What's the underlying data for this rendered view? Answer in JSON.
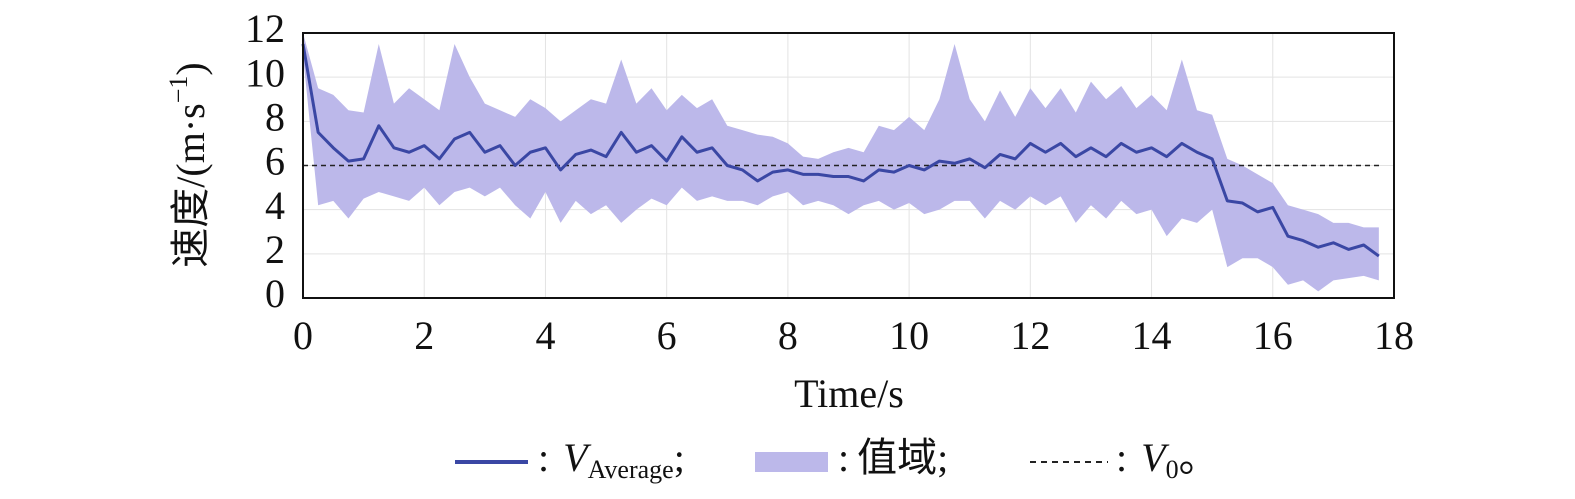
{
  "chart_data": {
    "type": "line",
    "xlabel": "Time/s",
    "ylabel": "速度/(m·s",
    "ylabel_sup": "−1",
    "ylabel_suffix": ")",
    "xlim": [
      0,
      18
    ],
    "xticks": [
      0,
      2,
      4,
      6,
      8,
      10,
      12,
      14,
      16,
      18
    ],
    "ylim": [
      0,
      12
    ],
    "yticks": [
      0,
      2,
      4,
      6,
      8,
      10,
      12
    ],
    "grid": true,
    "x": [
      0,
      0.25,
      0.5,
      0.75,
      1,
      1.25,
      1.5,
      1.75,
      2,
      2.25,
      2.5,
      2.75,
      3,
      3.25,
      3.5,
      3.75,
      4,
      4.25,
      4.5,
      4.75,
      5,
      5.25,
      5.5,
      5.75,
      6,
      6.25,
      6.5,
      6.75,
      7,
      7.25,
      7.5,
      7.75,
      8,
      8.25,
      8.5,
      8.75,
      9,
      9.25,
      9.5,
      9.75,
      10,
      10.25,
      10.5,
      10.75,
      11,
      11.25,
      11.5,
      11.75,
      12,
      12.25,
      12.5,
      12.75,
      13,
      13.25,
      13.5,
      13.75,
      14,
      14.25,
      14.5,
      14.75,
      15,
      15.25,
      15.5,
      15.75,
      16,
      16.25,
      16.5,
      16.75,
      17,
      17.25,
      17.5,
      17.75
    ],
    "series": [
      {
        "name_prefix": ":",
        "name": "V",
        "name_sub": "Average",
        "name_suffix": ";",
        "color": "#3a47a4",
        "values": [
          11.5,
          7.5,
          6.8,
          6.2,
          6.3,
          7.8,
          6.8,
          6.6,
          6.9,
          6.3,
          7.2,
          7.5,
          6.6,
          6.9,
          6.0,
          6.6,
          6.8,
          5.8,
          6.5,
          6.7,
          6.4,
          7.5,
          6.6,
          6.9,
          6.2,
          7.3,
          6.6,
          6.8,
          6.0,
          5.8,
          5.3,
          5.7,
          5.8,
          5.6,
          5.6,
          5.5,
          5.5,
          5.3,
          5.8,
          5.7,
          6.0,
          5.8,
          6.2,
          6.1,
          6.3,
          5.9,
          6.5,
          6.3,
          7.0,
          6.6,
          7.0,
          6.4,
          6.8,
          6.4,
          7.0,
          6.6,
          6.8,
          6.4,
          7.0,
          6.6,
          6.3,
          4.4,
          4.3,
          3.9,
          4.1,
          2.8,
          2.6,
          2.3,
          2.5,
          2.2,
          2.4,
          1.9
        ]
      },
      {
        "name_prefix": ":",
        "name": "值域",
        "name_suffix": ";",
        "color": "#bcb8ea",
        "upper": [
          12,
          9.5,
          9.2,
          8.5,
          8.4,
          11.5,
          8.8,
          9.5,
          9,
          8.5,
          11.5,
          10,
          8.8,
          8.5,
          8.2,
          9,
          8.6,
          8,
          8.5,
          9,
          8.8,
          10.8,
          8.8,
          9.5,
          8.5,
          9.2,
          8.6,
          9,
          7.8,
          7.6,
          7.4,
          7.3,
          7,
          6.4,
          6.3,
          6.6,
          6.8,
          6.6,
          7.8,
          7.6,
          8.2,
          7.6,
          9,
          11.5,
          9,
          8,
          9.4,
          8.2,
          9.5,
          8.6,
          9.5,
          8.4,
          9.8,
          9,
          9.6,
          8.6,
          9.2,
          8.5,
          10.8,
          8.5,
          8.3,
          6.3,
          6,
          5.6,
          5.2,
          4.2,
          4,
          3.8,
          3.4,
          3.4,
          3.2,
          3.2
        ],
        "lower": [
          11,
          4.2,
          4.4,
          3.6,
          4.5,
          4.8,
          4.6,
          4.4,
          5,
          4.2,
          4.8,
          5,
          4.6,
          5,
          4.2,
          3.6,
          4.8,
          3.4,
          4.4,
          3.8,
          4.2,
          3.4,
          4,
          4.5,
          4.2,
          5,
          4.4,
          4.6,
          4.4,
          4.4,
          4.2,
          4.6,
          4.8,
          4.2,
          4.4,
          4.2,
          3.8,
          4.2,
          4.4,
          4,
          4.3,
          3.8,
          4,
          4.4,
          4.4,
          3.6,
          4.4,
          4,
          4.6,
          4.2,
          4.6,
          3.4,
          4.2,
          3.6,
          4.4,
          3.8,
          4,
          2.8,
          3.6,
          3.4,
          4,
          1.4,
          1.8,
          1.8,
          1.4,
          0.6,
          0.8,
          0.3,
          0.8,
          0.9,
          1,
          0.8
        ]
      }
    ],
    "reference": {
      "name_prefix": ":",
      "name": "V",
      "name_sub": "0",
      "name_suffix": "。",
      "value": 6,
      "x_end": 17.8,
      "color": "#222222"
    }
  }
}
